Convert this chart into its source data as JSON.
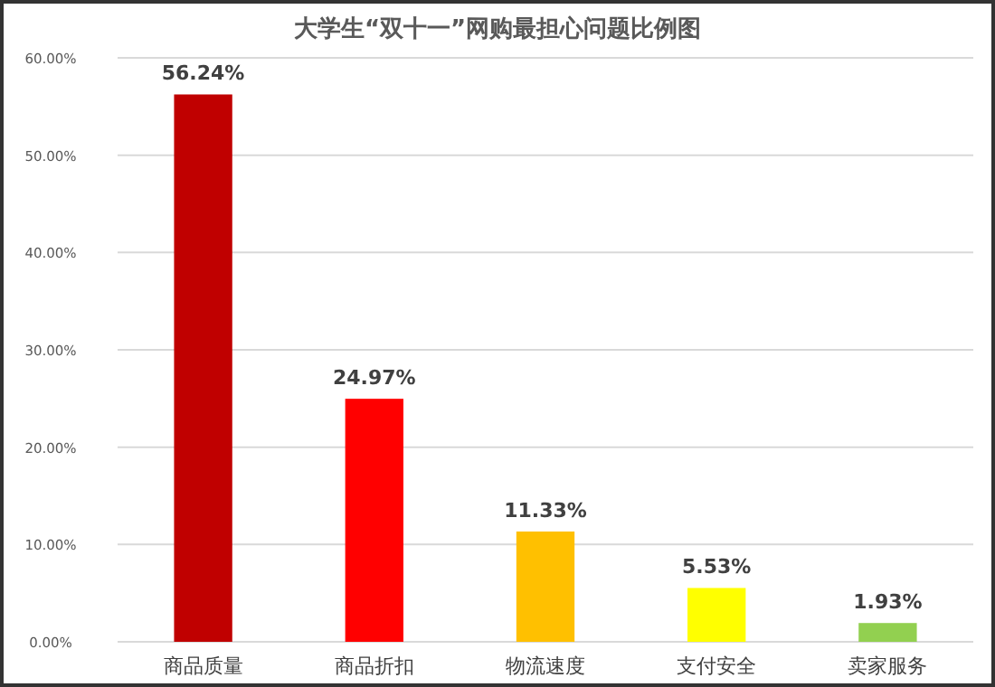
{
  "chart_data": {
    "type": "bar",
    "title": "大学生“双十一”网购最担心问题比例图",
    "categories": [
      "商品质量",
      "商品折扣",
      "物流速度",
      "支付安全",
      "卖家服务"
    ],
    "values": [
      56.24,
      24.97,
      11.33,
      5.53,
      1.93
    ],
    "colors": [
      "#c00000",
      "#ff0000",
      "#ffc000",
      "#ffff00",
      "#92d050"
    ],
    "value_labels": [
      "56.24%",
      "24.97%",
      "11.33%",
      "5.53%",
      "1.93%"
    ],
    "ylim": [
      0,
      60
    ],
    "yticks": [
      {
        "value": 0,
        "label": "0.00%"
      },
      {
        "value": 10,
        "label": "10.00%"
      },
      {
        "value": 20,
        "label": "20.00%"
      },
      {
        "value": 30,
        "label": "30.00%"
      },
      {
        "value": 40,
        "label": "40.00%"
      },
      {
        "value": 50,
        "label": "50.00%"
      },
      {
        "value": 60,
        "label": "60.00%"
      }
    ],
    "grid": "y"
  }
}
